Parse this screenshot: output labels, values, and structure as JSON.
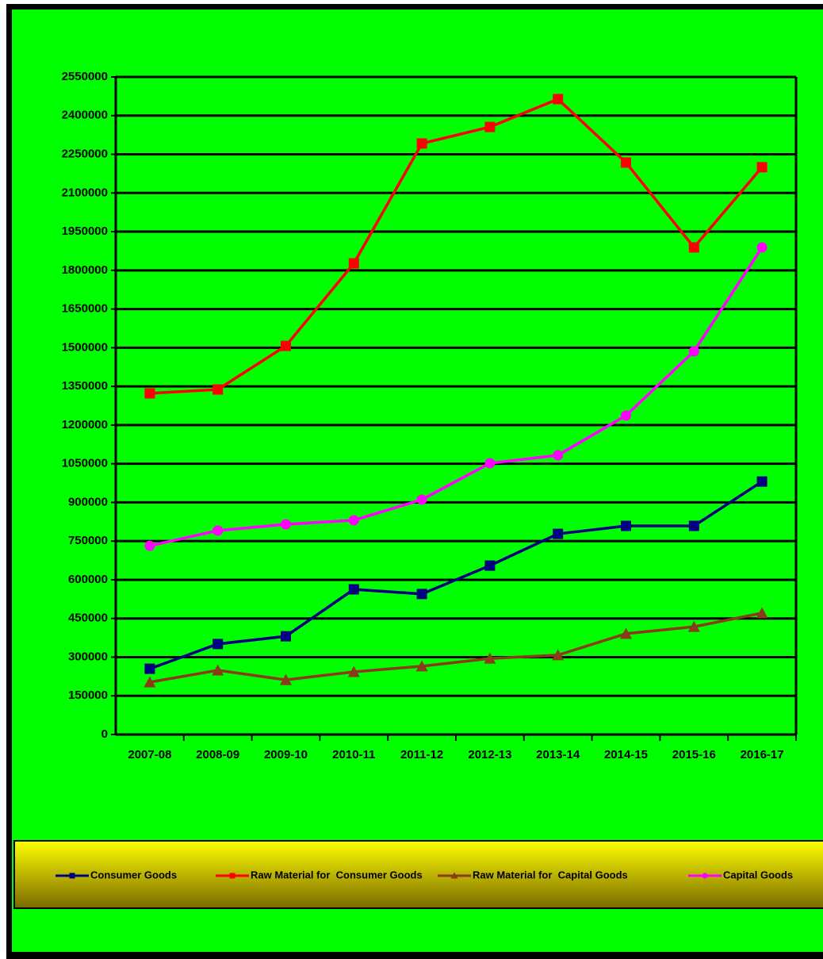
{
  "chart_data": {
    "type": "line",
    "categories": [
      "2007-08",
      "2008-09",
      "2009-10",
      "2010-11",
      "2011-12",
      "2012-13",
      "2013-14",
      "2014-15",
      "2015-16",
      "2016-17"
    ],
    "series": [
      {
        "name": "Consumer Goods",
        "color": "#000080",
        "marker": "square",
        "values": [
          255000,
          351000,
          381000,
          563000,
          545000,
          655000,
          778000,
          809000,
          809000,
          981000
        ]
      },
      {
        "name": "Raw Material for  Consumer Goods",
        "color": "#ff0000",
        "marker": "square",
        "values": [
          1323000,
          1338000,
          1507000,
          1827000,
          2292000,
          2356000,
          2464000,
          2218000,
          1889000,
          2200000
        ]
      },
      {
        "name": "Raw Material for  Capital Goods",
        "color": "#8b3a1a",
        "marker": "triangle",
        "values": [
          203000,
          249000,
          212000,
          243000,
          265000,
          295000,
          308000,
          391000,
          418000,
          471000
        ]
      },
      {
        "name": "Capital Goods",
        "color": "#ff00ff",
        "marker": "circle",
        "values": [
          732000,
          791000,
          815000,
          831000,
          911000,
          1052000,
          1083000,
          1237000,
          1486000,
          1889000
        ]
      }
    ],
    "ylim": [
      0,
      2550000
    ],
    "yticks": [
      0,
      150000,
      300000,
      450000,
      600000,
      750000,
      900000,
      1050000,
      1200000,
      1350000,
      1500000,
      1650000,
      1800000,
      1950000,
      2100000,
      2250000,
      2400000,
      2550000
    ],
    "grid": true,
    "legend": "bottom"
  }
}
